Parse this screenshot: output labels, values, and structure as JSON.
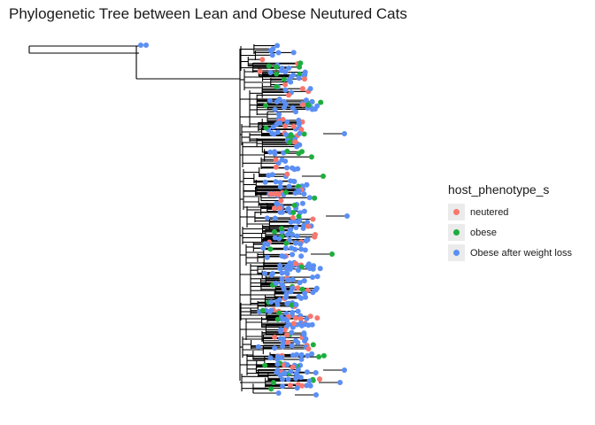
{
  "title": "Phylogenetic Tree between Lean and Obese Neutured Cats",
  "legend": {
    "title": "host_phenotype_s",
    "items": [
      {
        "label": "neutered",
        "color": "#F8766D"
      },
      {
        "label": "obese",
        "color": "#1DAE3E"
      },
      {
        "label": "Obese after weight loss",
        "color": "#5B8FF4"
      }
    ]
  },
  "colors": {
    "neutered": "#F8766D",
    "obese": "#1DAE3E",
    "obese_after_weight_loss": "#5B8FF4",
    "branch": "#000000"
  }
}
